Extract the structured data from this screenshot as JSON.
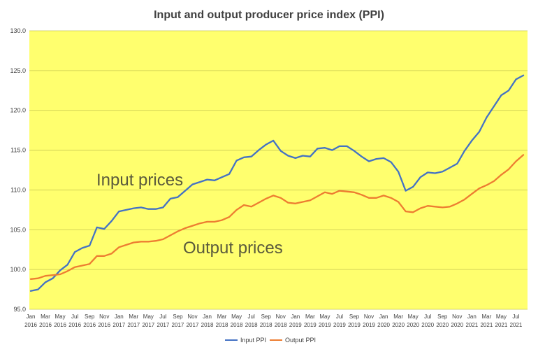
{
  "chart_data": {
    "type": "line",
    "title": "Input and output producer price index (PPI)",
    "ylim": [
      95.0,
      130.0
    ],
    "yticks": [
      "95.0",
      "100.0",
      "105.0",
      "110.0",
      "115.0",
      "120.0",
      "125.0",
      "130.0"
    ],
    "grid": true,
    "legend_position": "bottom",
    "background_color": "#ffff6e",
    "gridline_color": "#c8c850",
    "x": [
      "Jan 2016",
      "Feb 2016",
      "Mar 2016",
      "Apr 2016",
      "May 2016",
      "Jun 2016",
      "Jul 2016",
      "Aug 2016",
      "Sep 2016",
      "Oct 2016",
      "Nov 2016",
      "Dec 2016",
      "Jan 2017",
      "Feb 2017",
      "Mar 2017",
      "Apr 2017",
      "May 2017",
      "Jun 2017",
      "Jul 2017",
      "Aug 2017",
      "Sep 2017",
      "Oct 2017",
      "Nov 2017",
      "Dec 2017",
      "Jan 2018",
      "Feb 2018",
      "Mar 2018",
      "Apr 2018",
      "May 2018",
      "Jun 2018",
      "Jul 2018",
      "Aug 2018",
      "Sep 2018",
      "Oct 2018",
      "Nov 2018",
      "Dec 2018",
      "Jan 2019",
      "Feb 2019",
      "Mar 2019",
      "Apr 2019",
      "May 2019",
      "Jun 2019",
      "Jul 2019",
      "Aug 2019",
      "Sep 2019",
      "Oct 2019",
      "Nov 2019",
      "Dec 2019",
      "Jan 2020",
      "Feb 2020",
      "Mar 2020",
      "Apr 2020",
      "May 2020",
      "Jun 2020",
      "Jul 2020",
      "Aug 2020",
      "Sep 2020",
      "Oct 2020",
      "Nov 2020",
      "Dec 2020",
      "Jan 2021",
      "Feb 2021",
      "Mar 2021",
      "Apr 2021",
      "May 2021",
      "Jun 2021",
      "Jul 2021",
      "Aug 2021"
    ],
    "x_tick_labels": [
      {
        "month": "Jan",
        "year": "2016"
      },
      {
        "month": "Mar",
        "year": "2016"
      },
      {
        "month": "May",
        "year": "2016"
      },
      {
        "month": "Jul",
        "year": "2016"
      },
      {
        "month": "Sep",
        "year": "2016"
      },
      {
        "month": "Nov",
        "year": "2016"
      },
      {
        "month": "Jan",
        "year": "2017"
      },
      {
        "month": "Mar",
        "year": "2017"
      },
      {
        "month": "May",
        "year": "2017"
      },
      {
        "month": "Jul",
        "year": "2017"
      },
      {
        "month": "Sep",
        "year": "2017"
      },
      {
        "month": "Nov",
        "year": "2017"
      },
      {
        "month": "Jan",
        "year": "2018"
      },
      {
        "month": "Mar",
        "year": "2018"
      },
      {
        "month": "May",
        "year": "2018"
      },
      {
        "month": "Jul",
        "year": "2018"
      },
      {
        "month": "Sep",
        "year": "2018"
      },
      {
        "month": "Nov",
        "year": "2018"
      },
      {
        "month": "Jan",
        "year": "2019"
      },
      {
        "month": "Mar",
        "year": "2019"
      },
      {
        "month": "May",
        "year": "2019"
      },
      {
        "month": "Jul",
        "year": "2019"
      },
      {
        "month": "Sep",
        "year": "2019"
      },
      {
        "month": "Nov",
        "year": "2019"
      },
      {
        "month": "Jan",
        "year": "2020"
      },
      {
        "month": "Mar",
        "year": "2020"
      },
      {
        "month": "May",
        "year": "2020"
      },
      {
        "month": "Jul",
        "year": "2020"
      },
      {
        "month": "Sep",
        "year": "2020"
      },
      {
        "month": "Nov",
        "year": "2020"
      },
      {
        "month": "Jan",
        "year": "2021"
      },
      {
        "month": "Mar",
        "year": "2021"
      },
      {
        "month": "May",
        "year": "2021"
      },
      {
        "month": "Jul",
        "year": "2021"
      }
    ],
    "series": [
      {
        "name": "Input PPI",
        "color": "#4472c4",
        "values": [
          97.3,
          97.5,
          98.4,
          98.9,
          99.9,
          100.6,
          102.2,
          102.7,
          103.0,
          105.3,
          105.1,
          106.1,
          107.3,
          107.5,
          107.7,
          107.8,
          107.6,
          107.6,
          107.8,
          108.9,
          109.1,
          109.9,
          110.7,
          111.0,
          111.3,
          111.2,
          111.6,
          112.0,
          113.7,
          114.1,
          114.2,
          115.0,
          115.7,
          116.2,
          114.9,
          114.3,
          114.0,
          114.3,
          114.2,
          115.2,
          115.3,
          115.0,
          115.5,
          115.5,
          114.9,
          114.2,
          113.6,
          113.9,
          114.0,
          113.5,
          112.3,
          109.9,
          110.4,
          111.6,
          112.2,
          112.1,
          112.3,
          112.8,
          113.3,
          114.9,
          116.2,
          117.3,
          119.1,
          120.5,
          121.9,
          122.5,
          123.9,
          124.4
        ]
      },
      {
        "name": "Output PPI",
        "color": "#ed7d31",
        "values": [
          98.8,
          98.9,
          99.2,
          99.3,
          99.4,
          99.8,
          100.3,
          100.5,
          100.7,
          101.7,
          101.7,
          102.0,
          102.8,
          103.1,
          103.4,
          103.5,
          103.5,
          103.6,
          103.8,
          104.3,
          104.8,
          105.2,
          105.5,
          105.8,
          106.0,
          106.0,
          106.2,
          106.6,
          107.5,
          108.1,
          107.9,
          108.4,
          108.9,
          109.3,
          109.0,
          108.4,
          108.3,
          108.5,
          108.7,
          109.2,
          109.7,
          109.5,
          109.9,
          109.8,
          109.7,
          109.4,
          109.0,
          109.0,
          109.3,
          109.0,
          108.5,
          107.3,
          107.2,
          107.7,
          108.0,
          107.9,
          107.8,
          107.9,
          108.3,
          108.8,
          109.5,
          110.2,
          110.6,
          111.1,
          111.9,
          112.6,
          113.6,
          114.4
        ]
      }
    ],
    "annotations": [
      {
        "text": "Input prices",
        "series": "Input PPI"
      },
      {
        "text": "Output prices",
        "series": "Output PPI"
      }
    ]
  }
}
